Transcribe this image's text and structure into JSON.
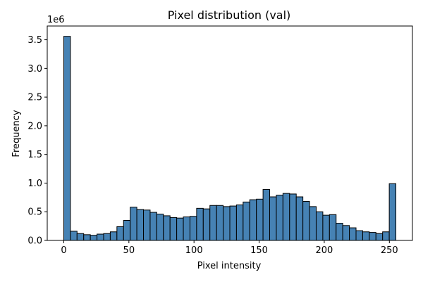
{
  "chart_data": {
    "type": "bar",
    "title": "Pixel distribution (val)",
    "xlabel": "Pixel intensity",
    "ylabel": "Frequency",
    "y_offset_text": "1e6",
    "xlim": [
      -12.7,
      267.7
    ],
    "ylim": [
      0,
      3.74
    ],
    "x_ticks": [
      0,
      50,
      100,
      150,
      200,
      250
    ],
    "x_tick_labels": [
      "0",
      "50",
      "100",
      "150",
      "200",
      "250"
    ],
    "y_ticks": [
      0.0,
      0.5,
      1.0,
      1.5,
      2.0,
      2.5,
      3.0,
      3.5
    ],
    "y_tick_labels": [
      "0.0",
      "0.5",
      "1.0",
      "1.5",
      "2.0",
      "2.5",
      "3.0",
      "3.5"
    ],
    "bin_start": 0,
    "bin_width": 5.1,
    "values": [
      3.56,
      0.16,
      0.12,
      0.1,
      0.09,
      0.11,
      0.12,
      0.15,
      0.24,
      0.35,
      0.58,
      0.54,
      0.53,
      0.49,
      0.46,
      0.43,
      0.4,
      0.39,
      0.41,
      0.42,
      0.56,
      0.55,
      0.61,
      0.61,
      0.59,
      0.6,
      0.62,
      0.67,
      0.71,
      0.72,
      0.89,
      0.76,
      0.79,
      0.82,
      0.81,
      0.76,
      0.68,
      0.59,
      0.5,
      0.44,
      0.45,
      0.3,
      0.26,
      0.22,
      0.17,
      0.15,
      0.14,
      0.12,
      0.15,
      0.99
    ],
    "bar_color": "#4682b4",
    "edge_color": "#000000",
    "grid": false
  }
}
